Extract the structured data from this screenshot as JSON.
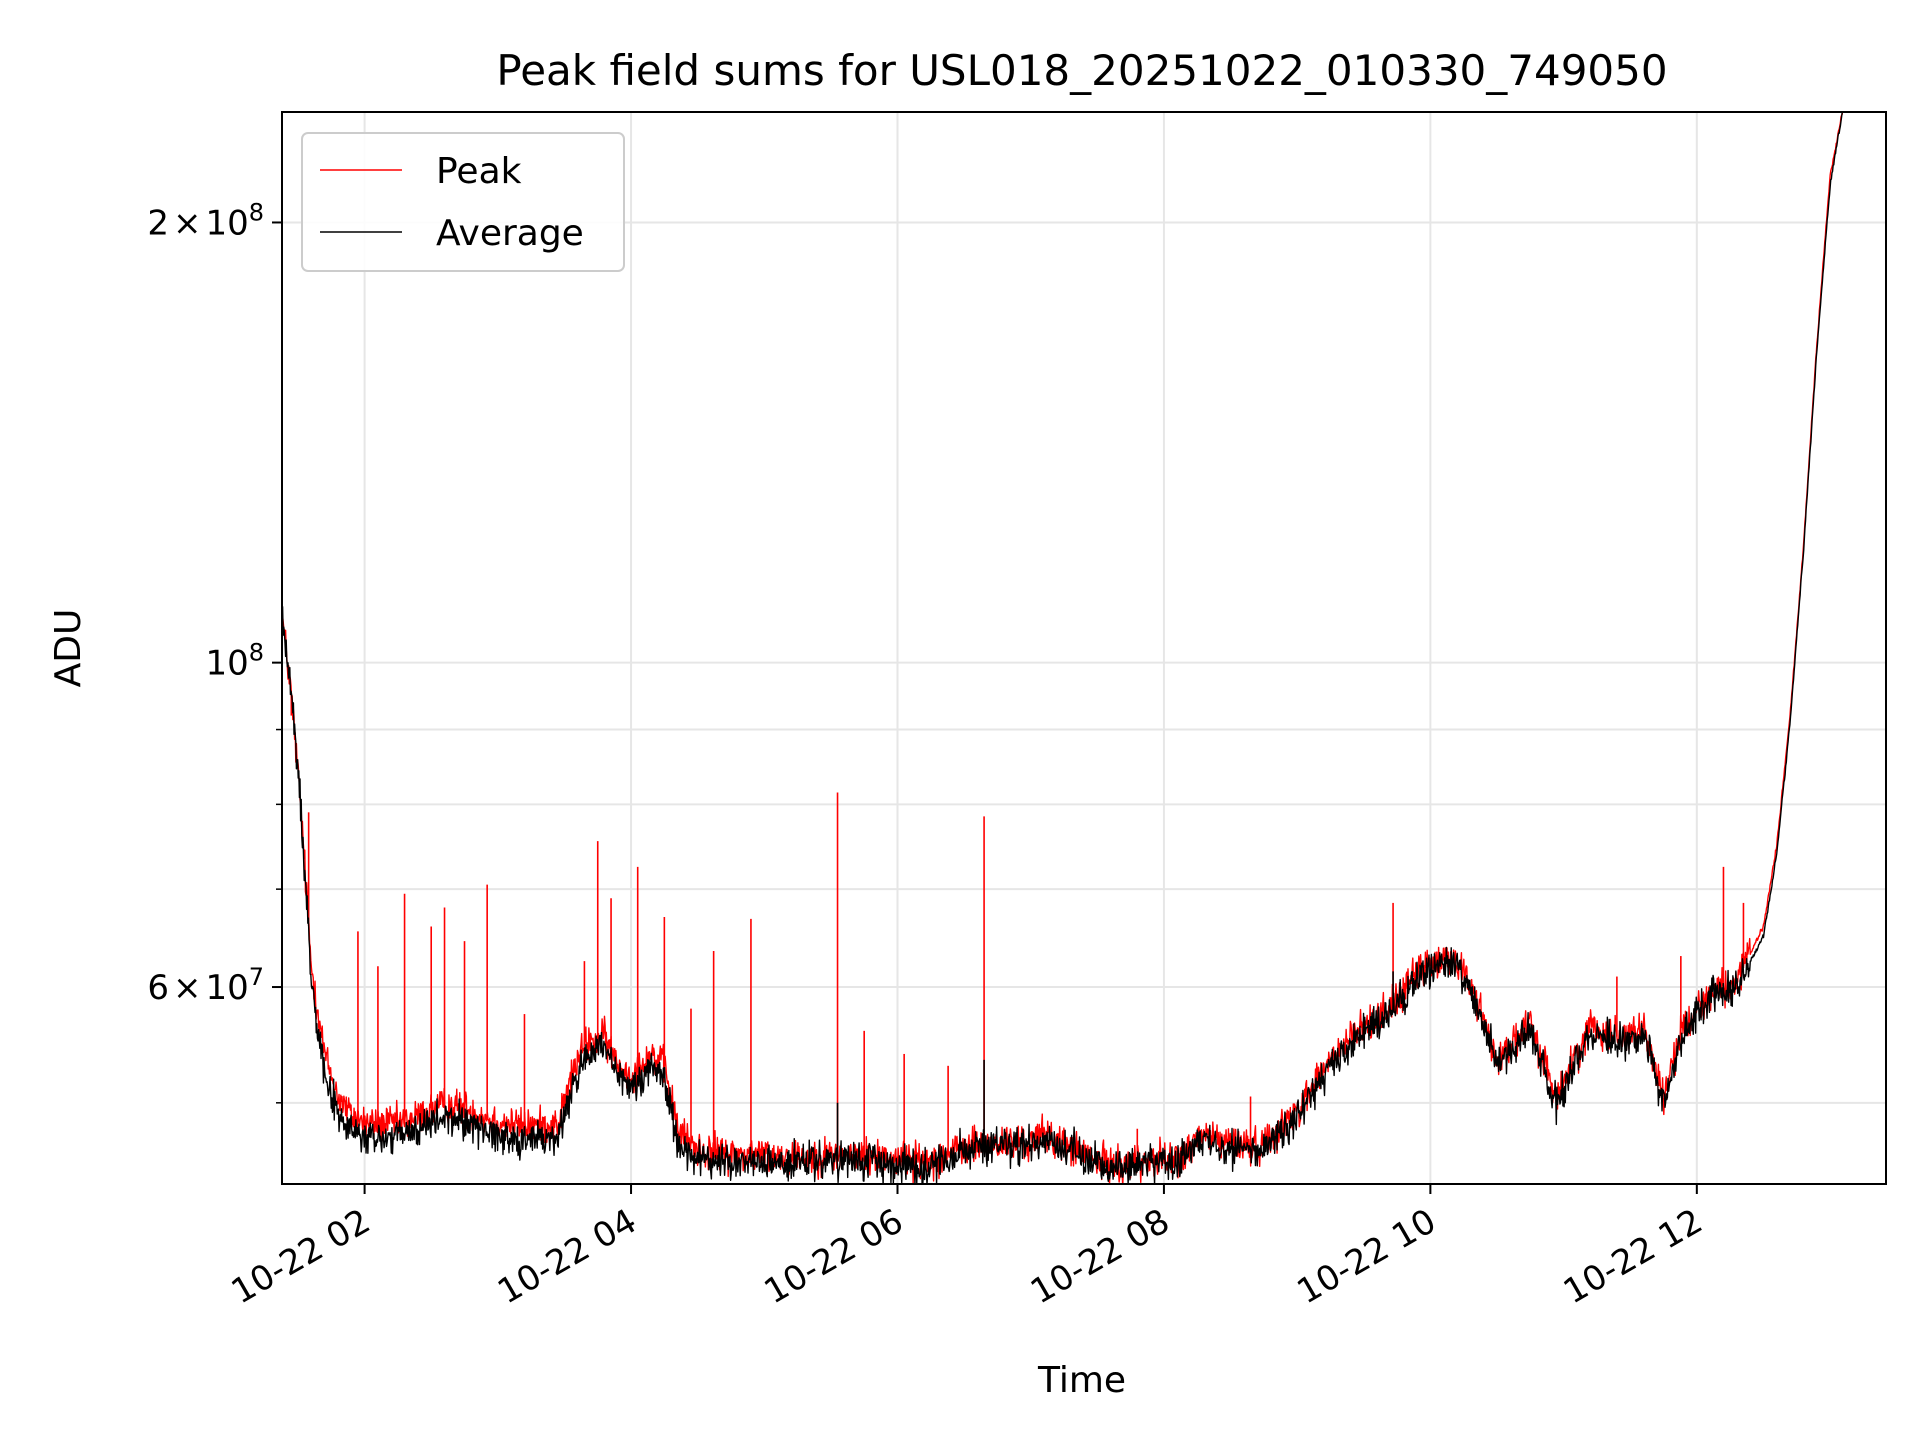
{
  "chart_data": {
    "type": "line",
    "title": "Peak field sums for USL018_20251022_010330_749050",
    "xlabel": "Time",
    "ylabel": "ADU",
    "yscale": "log",
    "xlim_hours": [
      1.38,
      13.42
    ],
    "ylim": [
      44000000,
      238000000
    ],
    "grid": true,
    "legend_position": "upper-left",
    "x_ticks": [
      {
        "hour": 2,
        "label": "10-22 02"
      },
      {
        "hour": 4,
        "label": "10-22 04"
      },
      {
        "hour": 6,
        "label": "10-22 06"
      },
      {
        "hour": 8,
        "label": "10-22 08"
      },
      {
        "hour": 10,
        "label": "10-22 10"
      },
      {
        "hour": 12,
        "label": "10-22 12"
      }
    ],
    "y_major_ticks": [
      {
        "value": 100000000,
        "base": "10",
        "exp": "8",
        "coef": ""
      },
      {
        "value": 60000000,
        "base": "10",
        "exp": "7",
        "coef": "6"
      },
      {
        "value": 200000000,
        "base": "10",
        "exp": "8",
        "coef": "2"
      }
    ],
    "y_minor_ticks": [
      50000000,
      70000000,
      80000000,
      90000000
    ],
    "times_symbol": "×",
    "series": [
      {
        "name": "Peak",
        "color": "#ff0000",
        "baseline": [
          [
            1.38,
            108000000
          ],
          [
            1.45,
            95000000
          ],
          [
            1.52,
            80000000
          ],
          [
            1.6,
            62000000
          ],
          [
            1.7,
            54000000
          ],
          [
            1.8,
            50500000
          ],
          [
            1.9,
            49000000
          ],
          [
            2.0,
            48500000
          ],
          [
            2.1,
            48300000
          ],
          [
            2.3,
            48500000
          ],
          [
            2.45,
            49200000
          ],
          [
            2.6,
            49800000
          ],
          [
            2.75,
            49600000
          ],
          [
            2.9,
            48900000
          ],
          [
            3.05,
            48400000
          ],
          [
            3.2,
            48200000
          ],
          [
            3.45,
            48300000
          ],
          [
            3.55,
            52000000
          ],
          [
            3.65,
            54800000
          ],
          [
            3.8,
            55500000
          ],
          [
            3.9,
            53000000
          ],
          [
            4.0,
            52200000
          ],
          [
            4.15,
            54000000
          ],
          [
            4.25,
            53000000
          ],
          [
            4.35,
            48000000
          ],
          [
            4.5,
            46400000
          ],
          [
            4.8,
            46100000
          ],
          [
            5.2,
            46000000
          ],
          [
            5.6,
            46000000
          ],
          [
            6.0,
            45900000
          ],
          [
            6.2,
            45600000
          ],
          [
            6.45,
            46400000
          ],
          [
            6.6,
            46800000
          ],
          [
            7.0,
            47000000
          ],
          [
            7.1,
            47600000
          ],
          [
            7.3,
            46600000
          ],
          [
            7.5,
            45600000
          ],
          [
            7.7,
            45300000
          ],
          [
            7.9,
            45800000
          ],
          [
            8.1,
            45700000
          ],
          [
            8.3,
            47500000
          ],
          [
            8.5,
            47000000
          ],
          [
            8.7,
            46600000
          ],
          [
            8.95,
            48800000
          ],
          [
            9.25,
            53500000
          ],
          [
            9.45,
            55900000
          ],
          [
            9.7,
            58200000
          ],
          [
            9.95,
            62000000
          ],
          [
            10.2,
            62700000
          ],
          [
            10.35,
            58800000
          ],
          [
            10.5,
            53500000
          ],
          [
            10.75,
            56500000
          ],
          [
            10.95,
            50500000
          ],
          [
            11.2,
            56500000
          ],
          [
            11.4,
            55500000
          ],
          [
            11.6,
            56300000
          ],
          [
            11.75,
            50500000
          ],
          [
            11.9,
            56500000
          ],
          [
            12.1,
            59500000
          ],
          [
            12.3,
            60500000
          ],
          [
            12.5,
            66000000
          ],
          [
            12.6,
            75000000
          ],
          [
            12.7,
            92000000
          ],
          [
            12.8,
            120000000
          ],
          [
            12.9,
            165000000
          ],
          [
            13.0,
            215000000
          ],
          [
            13.1,
            240000000
          ]
        ],
        "spikes": [
          {
            "t": 1.45,
            "v": 92000000
          },
          {
            "t": 1.58,
            "v": 79000000
          },
          {
            "t": 1.95,
            "v": 65500000
          },
          {
            "t": 2.1,
            "v": 62000000
          },
          {
            "t": 2.3,
            "v": 69500000
          },
          {
            "t": 2.5,
            "v": 66000000
          },
          {
            "t": 2.6,
            "v": 68000000
          },
          {
            "t": 2.75,
            "v": 64500000
          },
          {
            "t": 2.92,
            "v": 70500000
          },
          {
            "t": 3.2,
            "v": 57500000
          },
          {
            "t": 3.65,
            "v": 62500000
          },
          {
            "t": 3.75,
            "v": 75500000
          },
          {
            "t": 3.85,
            "v": 69000000
          },
          {
            "t": 4.05,
            "v": 72500000
          },
          {
            "t": 4.25,
            "v": 67000000
          },
          {
            "t": 4.45,
            "v": 58000000
          },
          {
            "t": 4.62,
            "v": 63500000
          },
          {
            "t": 4.9,
            "v": 66800000
          },
          {
            "t": 5.55,
            "v": 81500000
          },
          {
            "t": 5.75,
            "v": 56000000
          },
          {
            "t": 6.05,
            "v": 54000000
          },
          {
            "t": 6.38,
            "v": 53000000
          },
          {
            "t": 6.65,
            "v": 78500000
          },
          {
            "t": 7.8,
            "v": 48000000
          },
          {
            "t": 8.65,
            "v": 50500000
          },
          {
            "t": 9.72,
            "v": 68500000
          },
          {
            "t": 11.4,
            "v": 61000000
          },
          {
            "t": 11.88,
            "v": 63000000
          },
          {
            "t": 12.2,
            "v": 72500000
          },
          {
            "t": 12.35,
            "v": 68500000
          }
        ]
      },
      {
        "name": "Average",
        "color": "#000000",
        "baseline": [
          [
            1.38,
            108000000
          ],
          [
            1.45,
            95000000
          ],
          [
            1.52,
            80000000
          ],
          [
            1.6,
            61000000
          ],
          [
            1.7,
            52500000
          ],
          [
            1.8,
            49000000
          ],
          [
            1.9,
            47800000
          ],
          [
            2.0,
            47300000
          ],
          [
            2.1,
            47200000
          ],
          [
            2.3,
            47500000
          ],
          [
            2.45,
            48200000
          ],
          [
            2.6,
            48800000
          ],
          [
            2.75,
            48600000
          ],
          [
            2.9,
            47900000
          ],
          [
            3.05,
            47400000
          ],
          [
            3.2,
            47200000
          ],
          [
            3.45,
            47300000
          ],
          [
            3.55,
            50800000
          ],
          [
            3.65,
            53800000
          ],
          [
            3.8,
            54500000
          ],
          [
            3.9,
            52000000
          ],
          [
            4.0,
            51200000
          ],
          [
            4.15,
            53000000
          ],
          [
            4.25,
            52000000
          ],
          [
            4.35,
            47000000
          ],
          [
            4.5,
            45700000
          ],
          [
            4.8,
            45500000
          ],
          [
            5.2,
            45500000
          ],
          [
            5.6,
            45600000
          ],
          [
            6.0,
            45500000
          ],
          [
            6.2,
            45200000
          ],
          [
            6.45,
            46100000
          ],
          [
            6.6,
            46600000
          ],
          [
            7.0,
            46800000
          ],
          [
            7.1,
            47300000
          ],
          [
            7.3,
            46400000
          ],
          [
            7.5,
            45400000
          ],
          [
            7.7,
            45100000
          ],
          [
            7.9,
            45600000
          ],
          [
            8.1,
            45500000
          ],
          [
            8.3,
            47200000
          ],
          [
            8.5,
            46700000
          ],
          [
            8.7,
            46300000
          ],
          [
            8.95,
            48300000
          ],
          [
            9.25,
            52800000
          ],
          [
            9.45,
            55200000
          ],
          [
            9.7,
            57600000
          ],
          [
            9.95,
            61700000
          ],
          [
            10.2,
            62400000
          ],
          [
            10.35,
            58300000
          ],
          [
            10.5,
            53000000
          ],
          [
            10.75,
            56000000
          ],
          [
            10.95,
            50000000
          ],
          [
            11.2,
            56000000
          ],
          [
            11.4,
            55000000
          ],
          [
            11.6,
            55800000
          ],
          [
            11.75,
            50000000
          ],
          [
            11.9,
            56000000
          ],
          [
            12.1,
            59200000
          ],
          [
            12.3,
            60000000
          ],
          [
            12.5,
            65000000
          ],
          [
            12.6,
            74000000
          ],
          [
            12.7,
            91000000
          ],
          [
            12.8,
            119000000
          ],
          [
            12.9,
            163000000
          ],
          [
            13.0,
            212000000
          ],
          [
            13.1,
            240000000
          ]
        ],
        "spikes": [
          {
            "t": 5.55,
            "v": 50000000
          },
          {
            "t": 6.65,
            "v": 53500000
          },
          {
            "t": 9.72,
            "v": 61500000
          }
        ]
      }
    ]
  }
}
